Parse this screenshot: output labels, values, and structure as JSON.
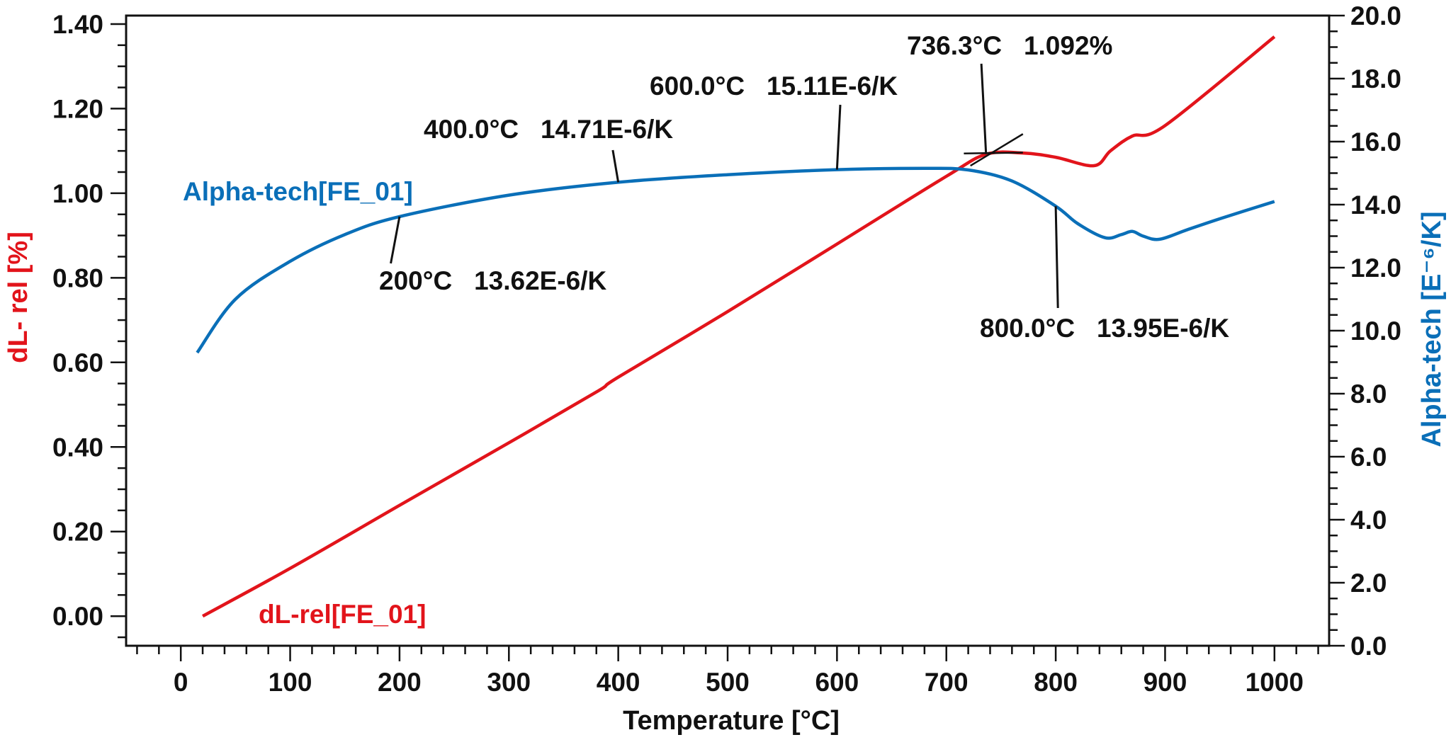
{
  "chart_data": {
    "type": "line",
    "xlabel": "Temperature [°C]",
    "xlim": [
      -50,
      1050
    ],
    "x_ticks": [
      "0",
      "100",
      "200",
      "300",
      "400",
      "500",
      "600",
      "700",
      "800",
      "900",
      "1000"
    ],
    "y_left": {
      "label": "dL- rel [%]",
      "color": "#e2141b",
      "lim": [
        -0.07,
        1.42
      ],
      "ticks": [
        "0.00",
        "0.20",
        "0.40",
        "0.60",
        "0.80",
        "1.00",
        "1.20",
        "1.40"
      ]
    },
    "y_right": {
      "label": "Alpha-tech [E⁻⁶/K]",
      "color": "#0a6fb8",
      "lim": [
        0,
        20
      ],
      "ticks": [
        "0.0",
        "2.0",
        "4.0",
        "6.0",
        "8.0",
        "10.0",
        "12.0",
        "14.0",
        "16.0",
        "18.0",
        "20.0"
      ]
    },
    "series": [
      {
        "name": "dL-rel[FE_01]",
        "axis": "left",
        "color": "#e2141b",
        "x": [
          20,
          100,
          200,
          300,
          380,
          400,
          500,
          600,
          700,
          736.3,
          770,
          800,
          835,
          850,
          870,
          900,
          1000
        ],
        "y": [
          0.0,
          0.113,
          0.262,
          0.41,
          0.53,
          0.565,
          0.72,
          0.88,
          1.04,
          1.092,
          1.095,
          1.085,
          1.065,
          1.1,
          1.135,
          1.16,
          1.37
        ]
      },
      {
        "name": "Alpha-tech[FE_01]",
        "axis": "right",
        "color": "#0a6fb8",
        "x": [
          15,
          50,
          100,
          150,
          200,
          300,
          400,
          500,
          600,
          680,
          720,
          760,
          800,
          820,
          845,
          860,
          870,
          880,
          895,
          920,
          950,
          1000
        ],
        "y": [
          9.3,
          11.0,
          12.2,
          13.05,
          13.62,
          14.3,
          14.71,
          14.95,
          15.11,
          15.15,
          15.1,
          14.75,
          13.95,
          13.4,
          12.95,
          13.05,
          13.15,
          13.0,
          12.9,
          13.2,
          13.55,
          14.1
        ]
      }
    ],
    "annotations": [
      {
        "id": "200",
        "text": "200°C   13.62E-6/K"
      },
      {
        "id": "400",
        "text": "400.0°C   14.71E-6/K"
      },
      {
        "id": "600",
        "text": "600.0°C   15.11E-6/K"
      },
      {
        "id": "736",
        "text": "736.3°C   1.092%"
      },
      {
        "id": "800",
        "text": "800.0°C   13.95E-6/K"
      }
    ]
  }
}
